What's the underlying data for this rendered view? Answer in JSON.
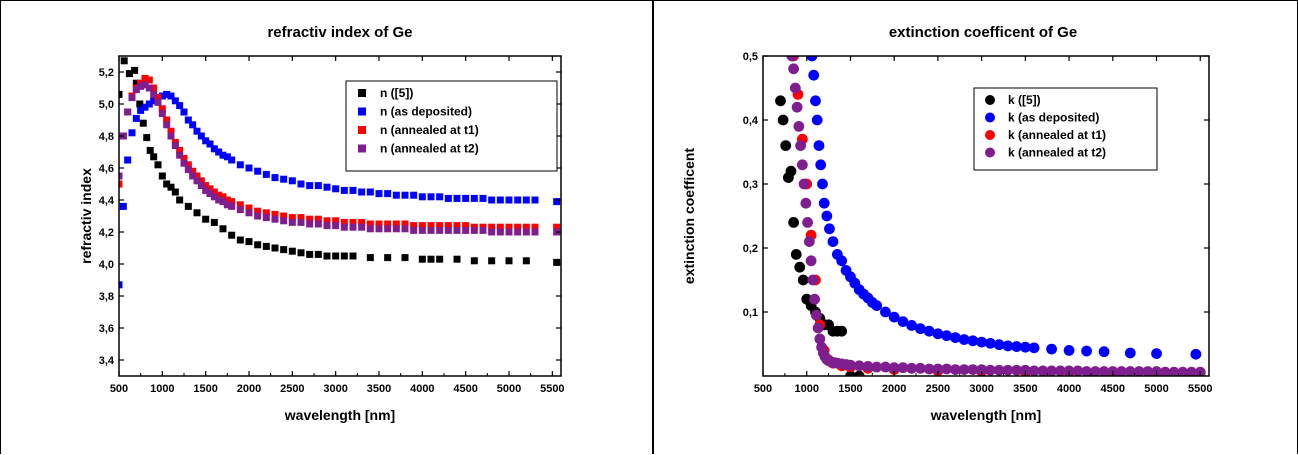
{
  "chart_data": [
    {
      "type": "scatter",
      "title": "refractiv index of Ge",
      "xlabel": "wavelength [nm]",
      "ylabel": "refractiv index",
      "xlim": [
        500,
        5600
      ],
      "ylim": [
        3.3,
        5.3
      ],
      "xticks": [
        "500",
        "1000",
        "1500",
        "2000",
        "2500",
        "3000",
        "3500",
        "4000",
        "4500",
        "5000",
        "5500"
      ],
      "yticks": [
        "3,4",
        "3,6",
        "3,8",
        "4,0",
        "4,2",
        "4,4",
        "4,6",
        "4,8",
        "5,0",
        "5,2"
      ],
      "marker": "square",
      "legend_position": "top-right",
      "series": [
        {
          "name": "n ([5])",
          "color": "#000000",
          "x": [
            500,
            560,
            620,
            680,
            700,
            740,
            780,
            820,
            860,
            900,
            950,
            1000,
            1050,
            1100,
            1150,
            1200,
            1300,
            1400,
            1500,
            1600,
            1700,
            1800,
            1900,
            2000,
            2100,
            2200,
            2300,
            2400,
            2500,
            2600,
            2700,
            2800,
            2900,
            3000,
            3100,
            3200,
            3400,
            3600,
            3800,
            4000,
            4100,
            4200,
            4400,
            4600,
            4800,
            5000,
            5200,
            5550
          ],
          "y": [
            5.06,
            5.27,
            5.19,
            5.21,
            5.13,
            5.0,
            4.88,
            4.79,
            4.71,
            4.67,
            4.62,
            4.55,
            4.5,
            4.48,
            4.45,
            4.4,
            4.36,
            4.32,
            4.28,
            4.26,
            4.22,
            4.18,
            4.15,
            4.14,
            4.12,
            4.11,
            4.1,
            4.09,
            4.08,
            4.07,
            4.06,
            4.06,
            4.05,
            4.05,
            4.05,
            4.05,
            4.04,
            4.04,
            4.04,
            4.03,
            4.03,
            4.03,
            4.03,
            4.02,
            4.02,
            4.02,
            4.02,
            4.01
          ]
        },
        {
          "name": "n (as deposited)",
          "color": "#0000ff",
          "x": [
            500,
            550,
            600,
            650,
            700,
            750,
            800,
            850,
            900,
            950,
            1000,
            1050,
            1100,
            1150,
            1200,
            1250,
            1300,
            1350,
            1400,
            1450,
            1500,
            1550,
            1600,
            1650,
            1700,
            1750,
            1800,
            1900,
            2000,
            2100,
            2200,
            2300,
            2400,
            2500,
            2600,
            2700,
            2800,
            2900,
            3000,
            3100,
            3200,
            3300,
            3400,
            3500,
            3600,
            3700,
            3800,
            3900,
            4000,
            4100,
            4200,
            4300,
            4400,
            4500,
            4600,
            4700,
            4800,
            4900,
            5000,
            5100,
            5200,
            5300,
            5550
          ],
          "y": [
            3.87,
            4.36,
            4.65,
            4.82,
            4.91,
            4.96,
            4.98,
            5.0,
            5.02,
            5.04,
            5.05,
            5.06,
            5.05,
            5.02,
            4.99,
            4.95,
            4.9,
            4.87,
            4.83,
            4.8,
            4.77,
            4.75,
            4.72,
            4.7,
            4.68,
            4.67,
            4.65,
            4.62,
            4.6,
            4.58,
            4.56,
            4.54,
            4.53,
            4.52,
            4.5,
            4.49,
            4.49,
            4.48,
            4.47,
            4.46,
            4.46,
            4.45,
            4.45,
            4.44,
            4.44,
            4.43,
            4.43,
            4.43,
            4.42,
            4.42,
            4.42,
            4.41,
            4.41,
            4.41,
            4.41,
            4.41,
            4.4,
            4.4,
            4.4,
            4.4,
            4.4,
            4.4,
            4.39
          ]
        },
        {
          "name": "n (annealed at t1)",
          "color": "#ff0000",
          "x": [
            500,
            550,
            600,
            650,
            700,
            750,
            800,
            850,
            900,
            950,
            1000,
            1050,
            1100,
            1150,
            1200,
            1250,
            1300,
            1350,
            1400,
            1450,
            1500,
            1550,
            1600,
            1650,
            1700,
            1750,
            1800,
            1900,
            2000,
            2100,
            2200,
            2300,
            2400,
            2500,
            2600,
            2700,
            2800,
            2900,
            3000,
            3100,
            3200,
            3300,
            3400,
            3500,
            3600,
            3700,
            3800,
            3900,
            4000,
            4100,
            4200,
            4300,
            4400,
            4500,
            4600,
            4700,
            4800,
            4900,
            5000,
            5100,
            5200,
            5300,
            5550
          ],
          "y": [
            4.5,
            4.8,
            4.95,
            5.05,
            5.1,
            5.13,
            5.16,
            5.15,
            5.1,
            5.04,
            4.97,
            4.9,
            4.83,
            4.76,
            4.71,
            4.66,
            4.62,
            4.58,
            4.55,
            4.52,
            4.49,
            4.47,
            4.45,
            4.43,
            4.42,
            4.4,
            4.39,
            4.37,
            4.35,
            4.33,
            4.32,
            4.31,
            4.3,
            4.29,
            4.29,
            4.28,
            4.28,
            4.27,
            4.27,
            4.26,
            4.26,
            4.26,
            4.25,
            4.25,
            4.25,
            4.25,
            4.25,
            4.24,
            4.24,
            4.24,
            4.24,
            4.24,
            4.24,
            4.24,
            4.23,
            4.23,
            4.23,
            4.23,
            4.23,
            4.23,
            4.23,
            4.23,
            4.23
          ]
        },
        {
          "name": "n (annealed at t2)",
          "color": "#7f1f8f",
          "x": [
            500,
            550,
            600,
            650,
            700,
            750,
            800,
            850,
            900,
            950,
            1000,
            1050,
            1100,
            1150,
            1200,
            1250,
            1300,
            1350,
            1400,
            1450,
            1500,
            1550,
            1600,
            1650,
            1700,
            1750,
            1800,
            1900,
            2000,
            2100,
            2200,
            2300,
            2400,
            2500,
            2600,
            2700,
            2800,
            2900,
            3000,
            3100,
            3200,
            3300,
            3400,
            3500,
            3600,
            3700,
            3800,
            3900,
            4000,
            4100,
            4200,
            4300,
            4400,
            4500,
            4600,
            4700,
            4800,
            4900,
            5000,
            5100,
            5200,
            5300,
            5550
          ],
          "y": [
            4.55,
            4.8,
            4.95,
            5.04,
            5.09,
            5.11,
            5.12,
            5.1,
            5.06,
            5.01,
            4.94,
            4.87,
            4.8,
            4.74,
            4.68,
            4.63,
            4.59,
            4.55,
            4.52,
            4.49,
            4.46,
            4.44,
            4.42,
            4.4,
            4.39,
            4.37,
            4.36,
            4.34,
            4.32,
            4.3,
            4.29,
            4.28,
            4.27,
            4.26,
            4.26,
            4.25,
            4.25,
            4.24,
            4.24,
            4.23,
            4.23,
            4.23,
            4.22,
            4.22,
            4.22,
            4.22,
            4.22,
            4.21,
            4.21,
            4.21,
            4.21,
            4.21,
            4.21,
            4.21,
            4.21,
            4.21,
            4.2,
            4.2,
            4.2,
            4.2,
            4.2,
            4.2,
            4.2
          ]
        }
      ]
    },
    {
      "type": "scatter",
      "title": "extinction coefficent of Ge",
      "xlabel": "wavelength [nm]",
      "ylabel": "extinction coefficent",
      "xlim": [
        500,
        5600
      ],
      "ylim": [
        0,
        0.5
      ],
      "xticks": [
        "500",
        "1000",
        "1500",
        "2000",
        "2500",
        "3000",
        "3500",
        "4000",
        "4500",
        "5000",
        "5500"
      ],
      "yticks": [
        "0,1",
        "0,2",
        "0,3",
        "0,4",
        "0,5"
      ],
      "marker": "circle",
      "legend_position": "top-right",
      "series": [
        {
          "name": "k ([5])",
          "color": "#000000",
          "x": [
            700,
            730,
            760,
            790,
            820,
            850,
            880,
            920,
            960,
            1000,
            1050,
            1100,
            1150,
            1200,
            1250,
            1300,
            1350,
            1400,
            1500,
            1600
          ],
          "y": [
            0.43,
            0.4,
            0.36,
            0.31,
            0.32,
            0.24,
            0.19,
            0.17,
            0.15,
            0.12,
            0.11,
            0.1,
            0.09,
            0.08,
            0.08,
            0.07,
            0.07,
            0.07,
            0.0,
            0.0
          ]
        },
        {
          "name": "k (as deposited)",
          "color": "#0000ff",
          "x": [
            1060,
            1080,
            1100,
            1120,
            1140,
            1160,
            1180,
            1200,
            1230,
            1260,
            1300,
            1350,
            1400,
            1450,
            1500,
            1550,
            1600,
            1650,
            1700,
            1750,
            1800,
            1900,
            2000,
            2100,
            2200,
            2300,
            2400,
            2500,
            2600,
            2700,
            2800,
            2900,
            3000,
            3100,
            3200,
            3300,
            3400,
            3500,
            3600,
            3800,
            4000,
            4200,
            4400,
            4700,
            5000,
            5450
          ],
          "y": [
            0.5,
            0.47,
            0.43,
            0.4,
            0.36,
            0.33,
            0.3,
            0.27,
            0.25,
            0.23,
            0.21,
            0.19,
            0.18,
            0.165,
            0.155,
            0.145,
            0.135,
            0.128,
            0.122,
            0.115,
            0.11,
            0.1,
            0.092,
            0.085,
            0.079,
            0.074,
            0.07,
            0.066,
            0.063,
            0.06,
            0.057,
            0.055,
            0.053,
            0.051,
            0.049,
            0.047,
            0.046,
            0.045,
            0.044,
            0.042,
            0.04,
            0.039,
            0.038,
            0.036,
            0.035,
            0.034
          ]
        },
        {
          "name": "k  (annealed at t1)",
          "color": "#ff0000",
          "x": [
            850,
            900,
            950,
            1000,
            1050,
            1100,
            1150,
            1200,
            1250,
            1300,
            1400,
            1500,
            1700,
            2000,
            2500,
            3000,
            3500,
            4000,
            4500,
            5000,
            5500
          ],
          "y": [
            0.5,
            0.44,
            0.37,
            0.3,
            0.22,
            0.15,
            0.08,
            0.04,
            0.025,
            0.02,
            0.016,
            0.014,
            0.012,
            0.01,
            0.008,
            0.007,
            0.006,
            0.006,
            0.005,
            0.005,
            0.005
          ]
        },
        {
          "name": "k (annealed at t2)",
          "color": "#7f1f8f",
          "x": [
            830,
            850,
            870,
            890,
            910,
            930,
            950,
            970,
            990,
            1010,
            1030,
            1050,
            1070,
            1090,
            1110,
            1130,
            1150,
            1170,
            1190,
            1210,
            1230,
            1250,
            1280,
            1310,
            1350,
            1400,
            1450,
            1500,
            1600,
            1700,
            1800,
            1900,
            2000,
            2100,
            2200,
            2300,
            2400,
            2500,
            2600,
            2700,
            2800,
            2900,
            3000,
            3100,
            3200,
            3300,
            3400,
            3500,
            3600,
            3700,
            3800,
            3900,
            4000,
            4100,
            4200,
            4300,
            4400,
            4500,
            4600,
            4700,
            4800,
            4900,
            5000,
            5100,
            5200,
            5300,
            5400,
            5500
          ],
          "y": [
            0.5,
            0.48,
            0.45,
            0.42,
            0.39,
            0.36,
            0.33,
            0.3,
            0.27,
            0.24,
            0.21,
            0.18,
            0.15,
            0.12,
            0.095,
            0.075,
            0.058,
            0.045,
            0.036,
            0.03,
            0.026,
            0.024,
            0.022,
            0.021,
            0.02,
            0.019,
            0.018,
            0.017,
            0.016,
            0.015,
            0.014,
            0.014,
            0.013,
            0.013,
            0.012,
            0.012,
            0.011,
            0.011,
            0.011,
            0.01,
            0.01,
            0.01,
            0.01,
            0.009,
            0.009,
            0.009,
            0.009,
            0.009,
            0.008,
            0.008,
            0.008,
            0.008,
            0.008,
            0.008,
            0.007,
            0.007,
            0.007,
            0.007,
            0.007,
            0.007,
            0.007,
            0.007,
            0.007,
            0.006,
            0.006,
            0.006,
            0.006,
            0.006
          ]
        }
      ]
    }
  ]
}
